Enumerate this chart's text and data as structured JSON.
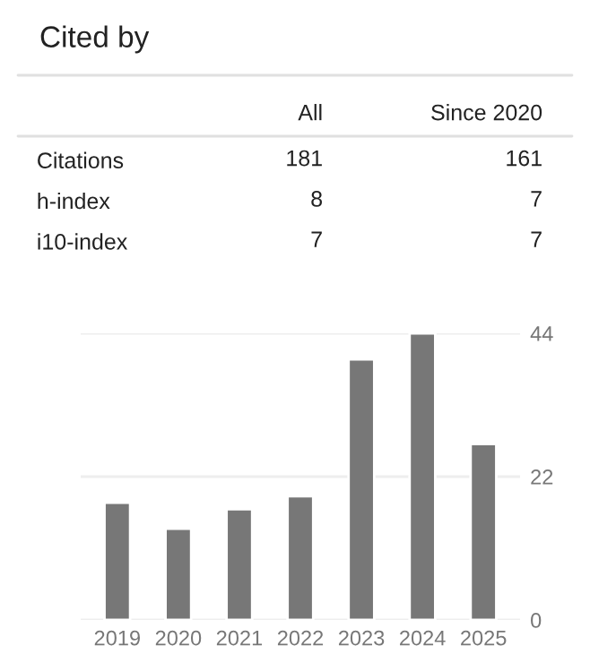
{
  "chart_data": [
    {
      "type": "heatmap",
      "title": "Cited by",
      "categories": [
        "All",
        "Since 2020"
      ],
      "y_categories": [
        "Citations",
        "h-index",
        "i10-index"
      ],
      "cells": [
        [
          181,
          161
        ],
        [
          8,
          7
        ],
        [
          7,
          7
        ]
      ],
      "data_labels": true
    },
    {
      "type": "bar",
      "categories": [
        "2019",
        "2020",
        "2021",
        "2022",
        "2023",
        "2024",
        "2025"
      ],
      "values": [
        18,
        14,
        17,
        19,
        40,
        44,
        27
      ],
      "color": "#777777",
      "ylim": [
        0,
        44
      ],
      "yticks": [
        0,
        22,
        44
      ],
      "grid": "y"
    }
  ]
}
